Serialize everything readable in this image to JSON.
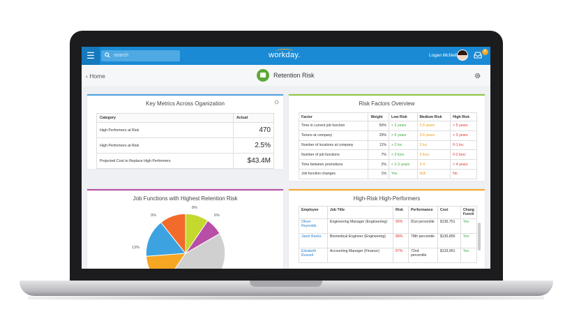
{
  "topbar": {
    "menu_icon": "hamburger-icon",
    "search_placeholder": "search",
    "logo": "workday.",
    "user_name": "Logan McNeil",
    "notification_count": "6",
    "colors": {
      "bar": "#1a8ad4",
      "badge": "#f5a623"
    }
  },
  "header": {
    "back_label": "‹ Home",
    "title": "Retention Risk"
  },
  "metrics": {
    "title": "Key Metrics Across Oganization",
    "columns": [
      "Category",
      "Actual"
    ],
    "rows": [
      {
        "category": "High Performers at Risk",
        "actual": "470"
      },
      {
        "category": "High Performers at Risk",
        "actual": "2.5%"
      },
      {
        "category": "Projected Cost to Replace High Performers",
        "actual": "$43.4M"
      }
    ]
  },
  "risk_factors": {
    "title": "Risk Factors Overview",
    "columns": [
      "Factor",
      "Weight",
      "Low Risk",
      "Medium Risk",
      "High Risk"
    ],
    "rows": [
      {
        "factor": "Time in current job function",
        "weight": "50%",
        "low": "< 3 years",
        "medium": "3-5 years",
        "high": "> 5 years"
      },
      {
        "factor": "Tenure at company",
        "weight": "29%",
        "low": "> 6 years",
        "medium": "3-6 years",
        "high": "< 3 years"
      },
      {
        "factor": "Number of locations at company",
        "weight": "11%",
        "low": "> 2 loc",
        "medium": "2 loc",
        "high": "0-1 loc"
      },
      {
        "factor": "Number of job functions",
        "weight": "7%",
        "low": "> 3 func",
        "medium": "3 func",
        "high": "0-2 func"
      },
      {
        "factor": "Time between promotions",
        "weight": "2%",
        "low": "< 2-3 years",
        "medium": "2-4",
        "high": "> 4 years"
      },
      {
        "factor": "Job function changes",
        "weight": "1%",
        "low": "Yes",
        "medium": "N/A",
        "high": "No"
      }
    ]
  },
  "jobs": {
    "title": "Job Functions with Highest Retention Risk",
    "labels": {
      "a": "8%",
      "b": "6%",
      "c": "9%",
      "d": "13%"
    }
  },
  "chart_data": {
    "type": "pie",
    "title": "Job Functions with Highest Retention Risk",
    "slices": [
      {
        "label": "8%",
        "value": 8,
        "color": "#c4d82e"
      },
      {
        "label": "6%",
        "value": 6,
        "color": "#b84ea5"
      },
      {
        "value": 36,
        "color": "#d0d0d0"
      },
      {
        "value": 12,
        "color": "#f5a623"
      },
      {
        "label": "13%",
        "value": 13,
        "color": "#3da3e0"
      },
      {
        "label": "9%",
        "value": 9,
        "color": "#f26b2a"
      }
    ]
  },
  "high_performers": {
    "title": "High-Risk High-Performers",
    "columns": [
      "Employee",
      "Job Title",
      "Risk",
      "Performance",
      "Cost",
      "Change Function"
    ],
    "col_change": [
      "Chang",
      "Functi"
    ],
    "rows": [
      {
        "employee": "Oliver Reynolds",
        "job": "Engineering Manager (Engineering)",
        "risk": "90%",
        "perf": "81st percentile",
        "cost": "$136,751",
        "change": "Yes"
      },
      {
        "employee": "Janet Banks",
        "job": "Biomedical Engineer (Engineering)",
        "risk": "88%",
        "perf": "78th percentile",
        "cost": "$130,855",
        "change": "Yes"
      },
      {
        "employee": "Elizabeth Russell",
        "job": "Accounting Manager (Finance)",
        "risk": "87%",
        "perf": "72nd percentile",
        "cost": "$133,961",
        "change": "Yes"
      }
    ]
  }
}
